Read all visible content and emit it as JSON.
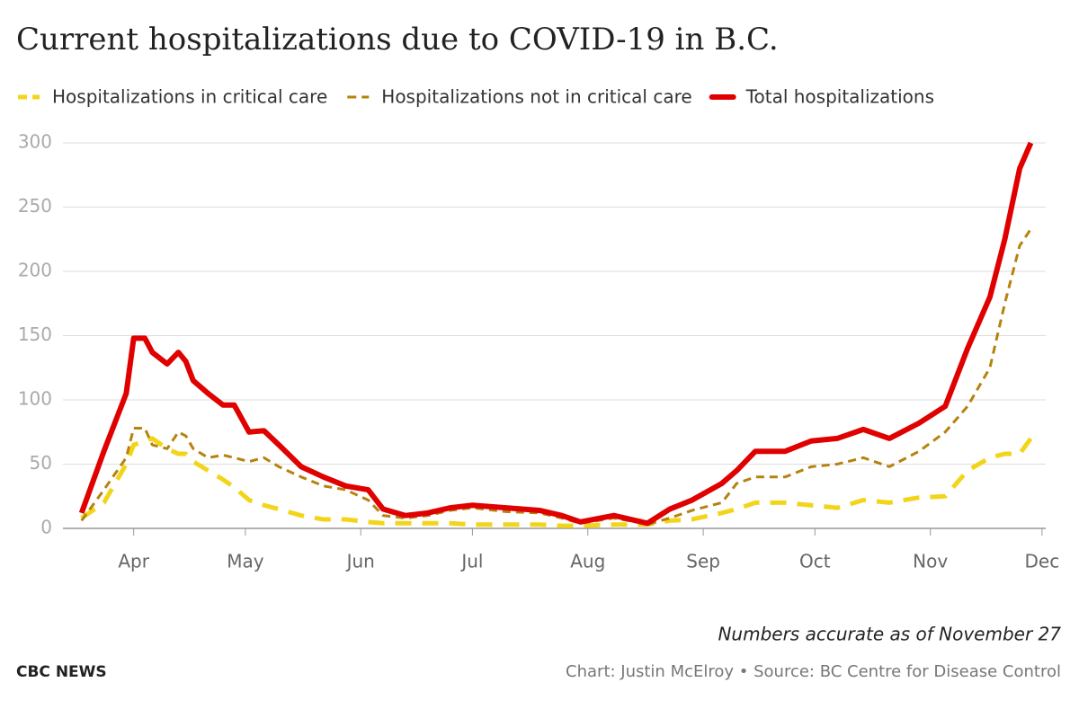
{
  "chart_data": {
    "type": "line",
    "title": "Current hospitalizations due to COVID-19 in B.C.",
    "x": [
      78,
      84,
      90,
      92,
      95,
      97,
      101,
      104,
      106,
      108,
      112,
      116,
      119,
      123,
      127,
      131,
      137,
      143,
      149,
      155,
      159,
      165,
      171,
      177,
      183,
      192,
      201,
      207,
      212,
      221,
      227,
      230,
      236,
      242,
      250,
      254,
      259,
      267,
      274,
      281,
      288,
      295,
      303,
      310,
      316,
      322,
      326,
      330,
      333
    ],
    "series": [
      {
        "name": "Hospitalizations in critical care",
        "color": "#f2d51a",
        "dash": "18 12",
        "width": 5,
        "values": [
          8,
          20,
          50,
          65,
          68,
          70,
          62,
          58,
          58,
          52,
          45,
          38,
          32,
          22,
          18,
          15,
          10,
          7,
          7,
          5,
          4,
          4,
          4,
          4,
          3,
          3,
          3,
          2,
          2,
          3,
          3,
          3,
          6,
          7,
          12,
          15,
          20,
          20,
          18,
          16,
          22,
          20,
          24,
          25,
          45,
          55,
          58,
          58,
          70
        ]
      },
      {
        "name": "Hospitalizations not in critical care",
        "color": "#b5820f",
        "dash": "9 6",
        "width": 3,
        "values": [
          6,
          30,
          55,
          78,
          78,
          65,
          62,
          75,
          72,
          62,
          55,
          57,
          55,
          52,
          55,
          48,
          40,
          33,
          30,
          22,
          10,
          8,
          10,
          14,
          16,
          13,
          12,
          8,
          4,
          8,
          5,
          3,
          8,
          14,
          20,
          35,
          40,
          40,
          48,
          50,
          55,
          48,
          60,
          75,
          95,
          125,
          175,
          220,
          233
        ]
      },
      {
        "name": "Total hospitalizations",
        "color": "#e00000",
        "dash": "none",
        "width": 6,
        "values": [
          12,
          60,
          105,
          148,
          148,
          137,
          128,
          137,
          130,
          115,
          105,
          96,
          96,
          75,
          76,
          65,
          48,
          40,
          33,
          30,
          15,
          10,
          12,
          16,
          18,
          16,
          14,
          10,
          5,
          10,
          6,
          4,
          15,
          22,
          35,
          45,
          60,
          60,
          68,
          70,
          77,
          70,
          82,
          95,
          140,
          180,
          225,
          280,
          300
        ]
      }
    ],
    "xlim": [
      73,
      337
    ],
    "xticks": [
      {
        "value": 92,
        "label": "Apr"
      },
      {
        "value": 122,
        "label": "May"
      },
      {
        "value": 153,
        "label": "Jun"
      },
      {
        "value": 183,
        "label": "Jul"
      },
      {
        "value": 214,
        "label": "Aug"
      },
      {
        "value": 245,
        "label": "Sep"
      },
      {
        "value": 275,
        "label": "Oct"
      },
      {
        "value": 306,
        "label": "Nov"
      },
      {
        "value": 336,
        "label": "Dec"
      }
    ],
    "ylim": [
      0,
      300
    ],
    "yticks": [
      0,
      50,
      100,
      150,
      200,
      250,
      300
    ],
    "grid": true,
    "note": "Numbers accurate as of November 27",
    "brand": "CBC NEWS",
    "source": "Chart: Justin McElroy • Source: BC Centre for Disease Control"
  }
}
